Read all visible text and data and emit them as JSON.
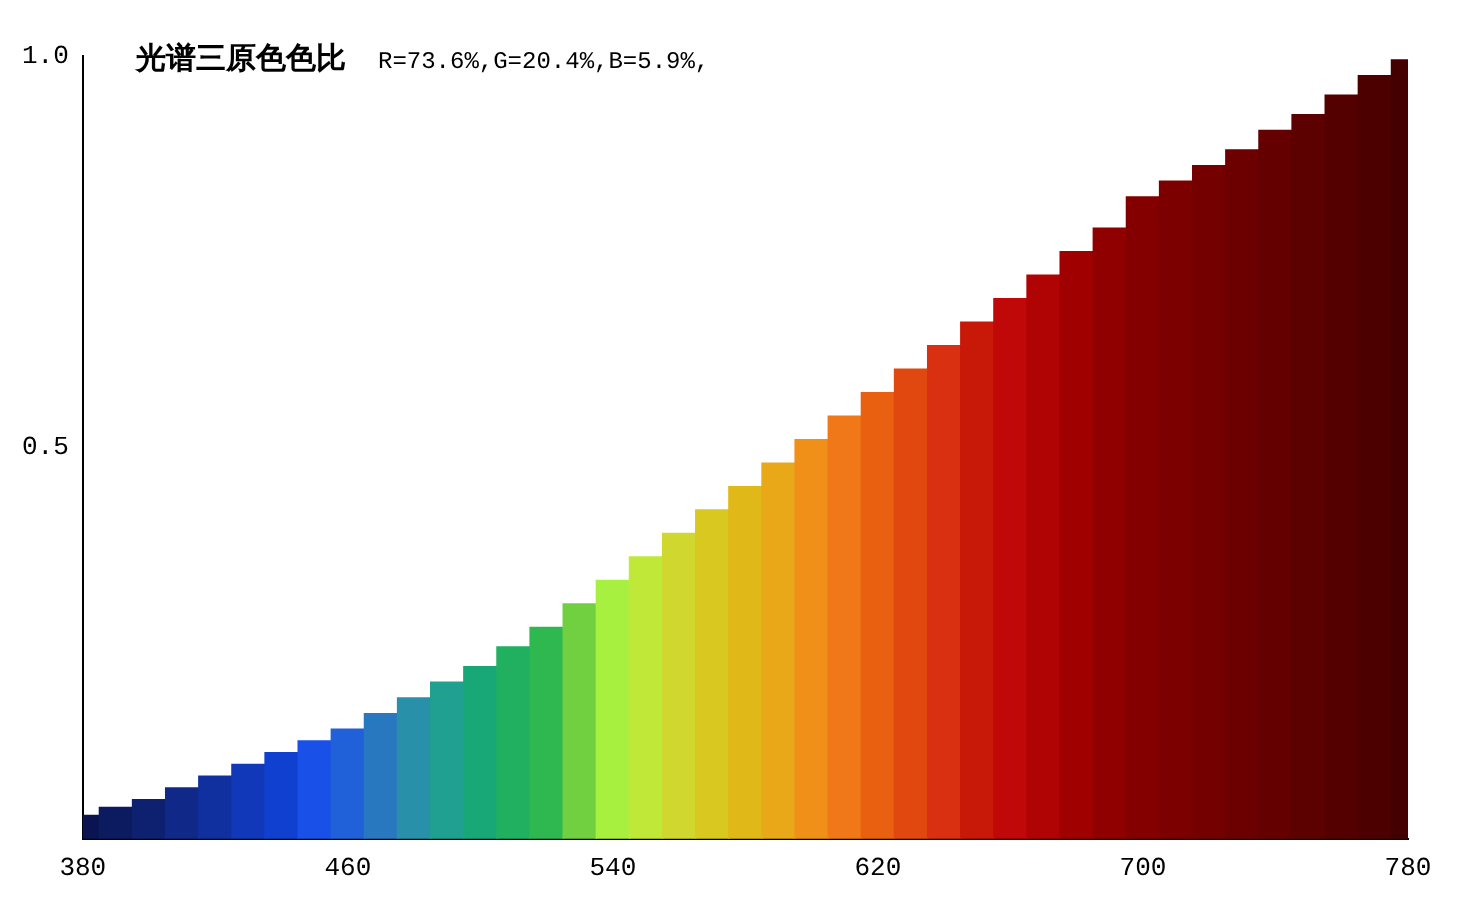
{
  "chart_data": {
    "type": "bar",
    "title": "光谱三原色色比",
    "subtitle": "R=73.6%,G=20.4%,B=5.9%,",
    "x": [
      380,
      390,
      400,
      410,
      420,
      430,
      440,
      450,
      460,
      470,
      480,
      490,
      500,
      510,
      520,
      530,
      540,
      550,
      560,
      570,
      580,
      590,
      600,
      610,
      620,
      630,
      640,
      650,
      660,
      670,
      680,
      690,
      700,
      710,
      720,
      730,
      740,
      750,
      760,
      770,
      780
    ],
    "values": [
      0.03,
      0.04,
      0.05,
      0.065,
      0.08,
      0.095,
      0.11,
      0.125,
      0.14,
      0.16,
      0.18,
      0.2,
      0.22,
      0.245,
      0.27,
      0.3,
      0.33,
      0.36,
      0.39,
      0.42,
      0.45,
      0.48,
      0.51,
      0.54,
      0.57,
      0.6,
      0.63,
      0.66,
      0.69,
      0.72,
      0.75,
      0.78,
      0.82,
      0.84,
      0.86,
      0.88,
      0.905,
      0.925,
      0.95,
      0.975,
      0.995
    ],
    "colors": [
      "#0a1450",
      "#0c1a60",
      "#0e2070",
      "#102888",
      "#1030a0",
      "#1038b8",
      "#1040d0",
      "#1850e8",
      "#2060d8",
      "#2878c0",
      "#2890a8",
      "#20a090",
      "#18a878",
      "#20b060",
      "#30b850",
      "#70d040",
      "#a8f040",
      "#c0e838",
      "#d0d830",
      "#d8c820",
      "#e0b818",
      "#e8a818",
      "#f09018",
      "#f07818",
      "#e86010",
      "#e04810",
      "#d83010",
      "#c81808",
      "#c00808",
      "#b00404",
      "#a00000",
      "#900000",
      "#840000",
      "#7c0000",
      "#740000",
      "#6c0000",
      "#640000",
      "#5c0000",
      "#540000",
      "#4c0000",
      "#440000"
    ],
    "xlim": [
      380,
      780
    ],
    "xticks": [
      380,
      460,
      540,
      620,
      700,
      780
    ],
    "ylim": [
      0,
      1
    ],
    "yticks": [
      0.5,
      {
        "value": 1,
        "label": "1.0"
      }
    ]
  }
}
